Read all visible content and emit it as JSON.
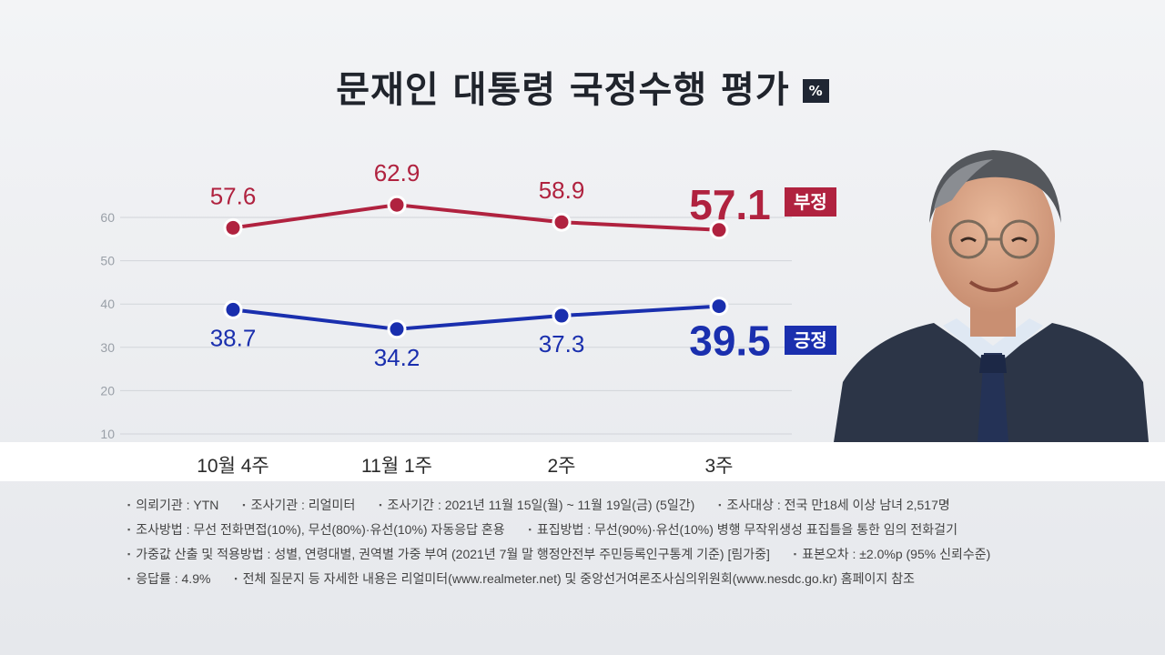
{
  "title": "문재인 대통령 국정수행 평가",
  "unit": "%",
  "colors": {
    "negative": "#b0223f",
    "positive": "#1a2fae"
  },
  "chart_data": {
    "type": "line",
    "categories": [
      "10월 4주",
      "11월 1주",
      "2주",
      "3주"
    ],
    "series": [
      {
        "name": "부정",
        "values": [
          57.6,
          62.9,
          58.9,
          57.1
        ]
      },
      {
        "name": "긍정",
        "values": [
          38.7,
          34.2,
          37.3,
          39.5
        ]
      }
    ],
    "yticks": [
      10,
      20,
      30,
      40,
      50,
      60
    ],
    "ylim": [
      10,
      60
    ],
    "grid": true
  },
  "value_labels": {
    "negative": [
      "57.6",
      "62.9",
      "58.9",
      "57.1"
    ],
    "positive": [
      "38.7",
      "34.2",
      "37.3",
      "39.5"
    ]
  },
  "notes": [
    [
      "의뢰기관 : YTN",
      "조사기관 : 리얼미터",
      "조사기간 : 2021년 11월 15일(월) ~ 11월 19일(금) (5일간)",
      "조사대상 : 전국 만18세 이상 남녀 2,517명"
    ],
    [
      "조사방법 : 무선 전화면접(10%), 무선(80%)·유선(10%) 자동응답 혼용",
      "표집방법 : 무선(90%)·유선(10%) 병행 무작위생성 표집틀을 통한 임의 전화걸기"
    ],
    [
      "가중값 산출 및 적용방법 : 성별, 연령대별, 권역별 가중 부여 (2021년 7월 말 행정안전부 주민등록인구통계 기준) [림가중]",
      "표본오차 : ±2.0%p (95% 신뢰수준)"
    ],
    [
      "응답률 : 4.9%",
      "전체 질문지 등 자세한 내용은 리얼미터(www.realmeter.net) 및 중앙선거여론조사심의위원회(www.nesdc.go.kr) 홈페이지 참조"
    ]
  ]
}
